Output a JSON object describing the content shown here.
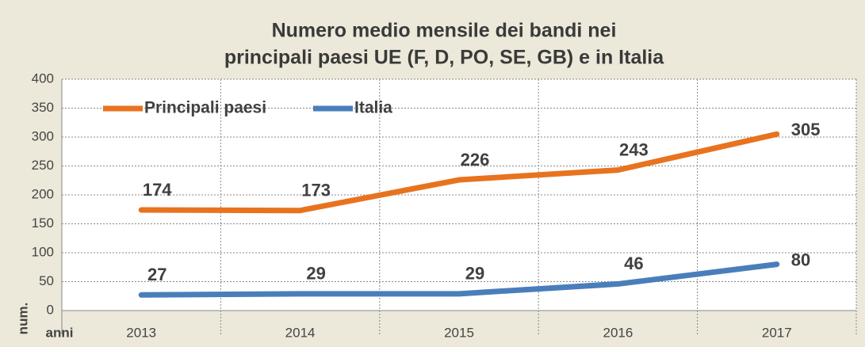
{
  "chart_data": {
    "type": "line",
    "title": [
      "Numero medio mensile dei bandi nei",
      "principali paesi UE (F, D, PO, SE, GB) e in Italia"
    ],
    "x_label": "anni",
    "y_label": "num.",
    "categories": [
      "2013",
      "2014",
      "2015",
      "2016",
      "2017"
    ],
    "series": [
      {
        "name": "Principali paesi",
        "color": "#e8731f",
        "values": [
          174,
          173,
          226,
          243,
          305
        ]
      },
      {
        "name": "Italia",
        "color": "#4a7ebb",
        "values": [
          27,
          29,
          29,
          46,
          80
        ]
      }
    ],
    "ylim": [
      0,
      400
    ],
    "yticks": [
      0,
      50,
      100,
      150,
      200,
      250,
      300,
      350,
      400
    ],
    "grid": true,
    "legend": "top-left"
  }
}
